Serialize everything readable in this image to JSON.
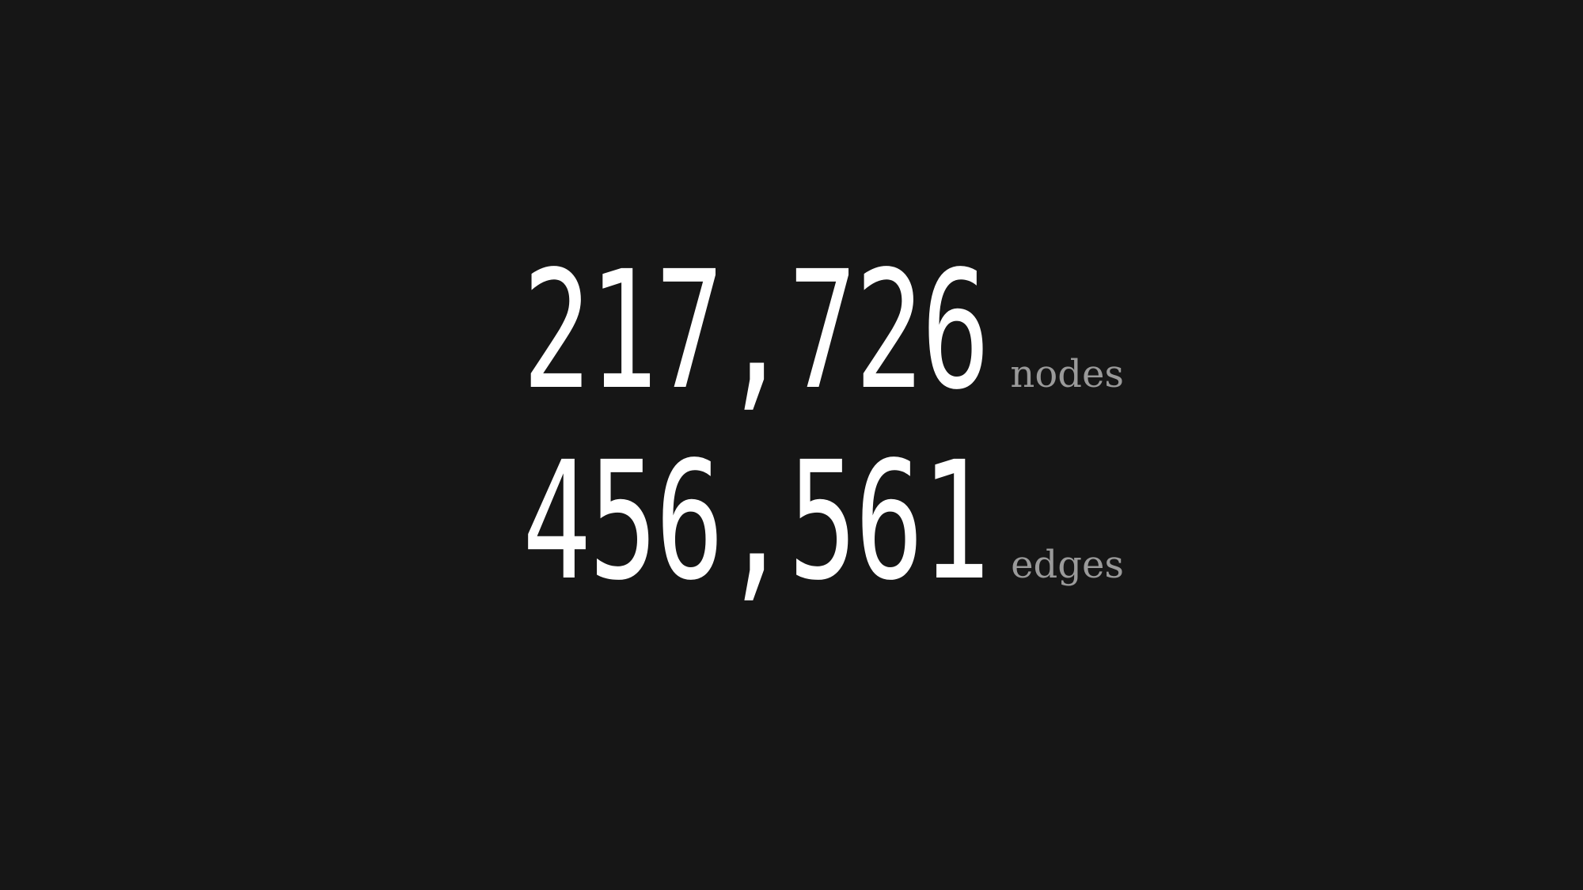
{
  "stats": [
    {
      "value": "217,726",
      "label": "nodes"
    },
    {
      "value": "456,561",
      "label": "edges"
    }
  ],
  "colors": {
    "background": "#161616",
    "number": "#ffffff",
    "label": "#9a9a9a"
  }
}
